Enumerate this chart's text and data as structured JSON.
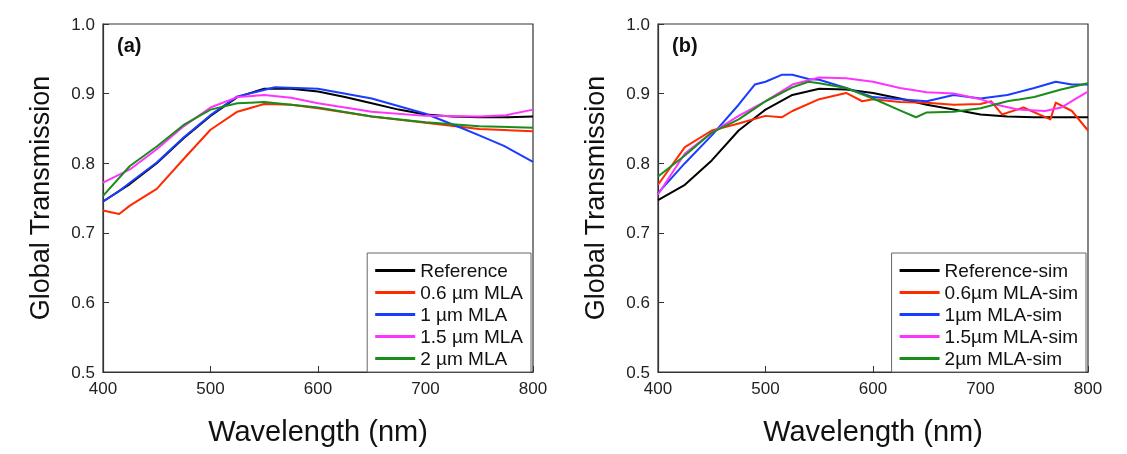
{
  "chart_data": [
    {
      "type": "line",
      "title": "(a)",
      "xlabel": "Wavelength (nm)",
      "ylabel": "Global Transmission",
      "xlim": [
        400,
        800
      ],
      "xticks": [
        400,
        500,
        600,
        700,
        800
      ],
      "ylim": [
        0.5,
        1.0
      ],
      "yticks": [
        0.5,
        0.6,
        0.7,
        0.8,
        0.9,
        {
          "value": 1.0,
          "label": "1.0"
        }
      ],
      "legend": "bottom right",
      "grid": false,
      "marker": "none",
      "line_style": "solid",
      "series": [
        {
          "name": "Reference",
          "color": "#000000",
          "x": [
            400,
            425,
            450,
            475,
            500,
            525,
            550,
            575,
            600,
            625,
            650,
            675,
            700,
            725,
            750,
            775,
            800
          ],
          "values": [
            0.745,
            0.77,
            0.8,
            0.836,
            0.868,
            0.895,
            0.907,
            0.907,
            0.903,
            0.895,
            0.886,
            0.877,
            0.87,
            0.867,
            0.866,
            0.866,
            0.867
          ]
        },
        {
          "name": "0.6 µm MLA",
          "color": "#ff2a00",
          "x": [
            400,
            415,
            425,
            450,
            475,
            500,
            525,
            550,
            575,
            600,
            650,
            700,
            750,
            800
          ],
          "values": [
            0.732,
            0.727,
            0.739,
            0.763,
            0.806,
            0.848,
            0.874,
            0.885,
            0.884,
            0.879,
            0.867,
            0.858,
            0.849,
            0.846
          ]
        },
        {
          "name": "1 µm MLA",
          "color": "#1a3cff",
          "x": [
            400,
            415,
            425,
            450,
            475,
            500,
            525,
            560,
            600,
            650,
            700,
            733,
            750,
            773,
            800
          ],
          "values": [
            0.745,
            0.76,
            0.772,
            0.801,
            0.837,
            0.869,
            0.896,
            0.909,
            0.907,
            0.893,
            0.871,
            0.851,
            0.84,
            0.825,
            0.802
          ]
        },
        {
          "name": "1.5 µm MLA",
          "color": "#ff33ff",
          "x": [
            400,
            425,
            450,
            475,
            500,
            525,
            550,
            575,
            600,
            650,
            700,
            750,
            775,
            800
          ],
          "values": [
            0.772,
            0.791,
            0.82,
            0.853,
            0.88,
            0.895,
            0.898,
            0.894,
            0.886,
            0.874,
            0.868,
            0.867,
            0.869,
            0.877
          ]
        },
        {
          "name": "2 µm MLA",
          "color": "#1a8c1a",
          "x": [
            400,
            425,
            450,
            475,
            500,
            525,
            550,
            575,
            600,
            650,
            700,
            750,
            800
          ],
          "values": [
            0.753,
            0.796,
            0.824,
            0.855,
            0.877,
            0.886,
            0.888,
            0.884,
            0.88,
            0.867,
            0.859,
            0.853,
            0.851
          ]
        }
      ]
    },
    {
      "type": "line",
      "title": "(b)",
      "xlabel": "Wavelength (nm)",
      "ylabel": "Global Transmission",
      "xlim": [
        400,
        800
      ],
      "xticks": [
        400,
        500,
        600,
        700,
        800
      ],
      "ylim": [
        0.5,
        1.0
      ],
      "yticks": [
        0.5,
        0.6,
        0.7,
        0.8,
        0.9,
        {
          "value": 1.0,
          "label": "1.0"
        }
      ],
      "legend": "bottom right",
      "grid": false,
      "marker": "none",
      "line_style": "solid",
      "series": [
        {
          "name": "Reference-sim",
          "color": "#000000",
          "x": [
            400,
            425,
            450,
            475,
            500,
            525,
            550,
            575,
            600,
            625,
            650,
            675,
            700,
            725,
            750,
            800
          ],
          "values": [
            0.747,
            0.769,
            0.804,
            0.847,
            0.877,
            0.898,
            0.907,
            0.906,
            0.901,
            0.893,
            0.884,
            0.877,
            0.87,
            0.867,
            0.866,
            0.866
          ]
        },
        {
          "name": "0.6µm MLA-sim",
          "color": "#ff2a00",
          "x": [
            400,
            425,
            450,
            475,
            500,
            515,
            525,
            550,
            575,
            590,
            600,
            625,
            650,
            675,
            700,
            710,
            720,
            740,
            765,
            770,
            785,
            800
          ],
          "values": [
            0.769,
            0.823,
            0.847,
            0.857,
            0.868,
            0.866,
            0.875,
            0.892,
            0.901,
            0.889,
            0.892,
            0.888,
            0.887,
            0.884,
            0.885,
            0.889,
            0.87,
            0.88,
            0.863,
            0.887,
            0.875,
            0.847
          ]
        },
        {
          "name": "1µm MLA-sim",
          "color": "#1a3cff",
          "x": [
            400,
            425,
            450,
            475,
            490,
            500,
            515,
            525,
            540,
            550,
            575,
            600,
            625,
            650,
            675,
            700,
            725,
            750,
            770,
            785,
            800
          ],
          "values": [
            0.757,
            0.8,
            0.84,
            0.884,
            0.913,
            0.917,
            0.927,
            0.927,
            0.921,
            0.92,
            0.908,
            0.895,
            0.892,
            0.889,
            0.898,
            0.893,
            0.898,
            0.908,
            0.917,
            0.913,
            0.913
          ]
        },
        {
          "name": "1.5µm MLA-sim",
          "color": "#ff33ff",
          "x": [
            400,
            425,
            450,
            475,
            500,
            525,
            550,
            575,
            600,
            625,
            650,
            675,
            700,
            715,
            735,
            760,
            775,
            790,
            800
          ],
          "values": [
            0.755,
            0.814,
            0.844,
            0.868,
            0.889,
            0.913,
            0.923,
            0.922,
            0.917,
            0.908,
            0.902,
            0.9,
            0.892,
            0.884,
            0.877,
            0.875,
            0.88,
            0.894,
            0.903
          ]
        },
        {
          "name": "2µm MLA-sim",
          "color": "#1a8c1a",
          "x": [
            400,
            425,
            450,
            475,
            500,
            525,
            540,
            550,
            575,
            600,
            625,
            640,
            650,
            675,
            700,
            725,
            750,
            775,
            800
          ],
          "values": [
            0.781,
            0.811,
            0.844,
            0.863,
            0.889,
            0.909,
            0.917,
            0.915,
            0.908,
            0.893,
            0.876,
            0.866,
            0.873,
            0.874,
            0.879,
            0.889,
            0.895,
            0.906,
            0.915
          ]
        }
      ]
    }
  ]
}
